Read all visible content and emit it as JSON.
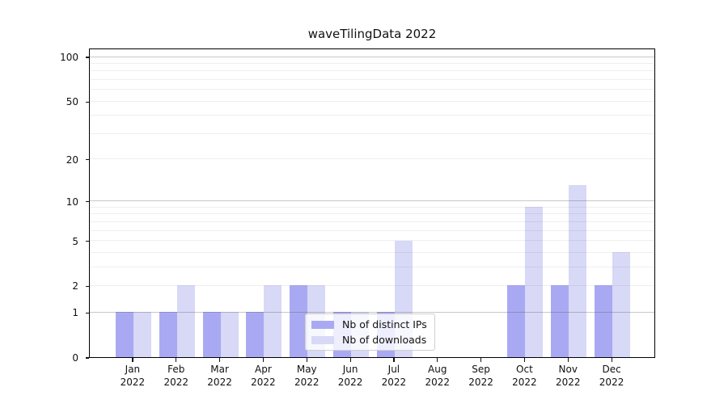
{
  "chart_data": {
    "type": "bar",
    "title": "waveTilingData 2022",
    "categories": [
      "Jan 2022",
      "Feb 2022",
      "Mar 2022",
      "Apr 2022",
      "May 2022",
      "Jun 2022",
      "Jul 2022",
      "Aug 2022",
      "Sep 2022",
      "Oct 2022",
      "Nov 2022",
      "Dec 2022"
    ],
    "series": [
      {
        "name": "Nb of distinct IPs",
        "color": "#a9a9f3",
        "values": [
          1,
          1,
          1,
          1,
          2,
          1,
          1,
          0,
          0,
          2,
          2,
          2
        ]
      },
      {
        "name": "Nb of downloads",
        "color": "#d8d8f7",
        "values": [
          1,
          2,
          1,
          2,
          2,
          1,
          5,
          0,
          0,
          9,
          13,
          4
        ]
      }
    ],
    "xlabel": "",
    "ylabel": "",
    "y_scale": "log10(value+1)",
    "ylim": [
      0,
      115
    ],
    "y_ticks": [
      0,
      1,
      2,
      5,
      10,
      20,
      50,
      100
    ],
    "y_gridlines": {
      "major": [
        1,
        10,
        100
      ],
      "minor": [
        2,
        3,
        4,
        5,
        6,
        7,
        8,
        9,
        20,
        30,
        40,
        50,
        60,
        70,
        80,
        90
      ]
    },
    "grid": "on",
    "legend_position": "lower center (inside plot)"
  },
  "colors": {
    "distinct_ips_bar": "#a9a9f3",
    "downloads_bar": "#d8d8f7",
    "axis": "#000000",
    "background": "#ffffff"
  }
}
